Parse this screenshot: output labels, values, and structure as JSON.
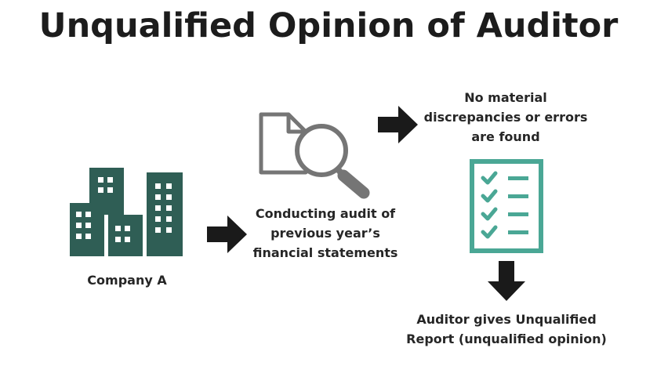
{
  "title": "Unqualified Opinion of Auditor",
  "company": {
    "label": "Company A",
    "icon": "office-buildings-icon"
  },
  "audit": {
    "lines": [
      "Conducting audit of",
      "previous year’s",
      "financial statements"
    ],
    "icon": "document-magnifier-icon"
  },
  "finding": {
    "lines": [
      "No material",
      "discrepancies or errors",
      "are found"
    ],
    "icon": "checklist-icon"
  },
  "result": {
    "lines": [
      "Auditor gives Unqualified",
      "Report (unqualified opinion)"
    ]
  },
  "colors": {
    "buildings": "#2f5e55",
    "checklist": "#4aa795",
    "document": "#757575",
    "arrow": "#1a1a1a",
    "text": "#262626"
  }
}
